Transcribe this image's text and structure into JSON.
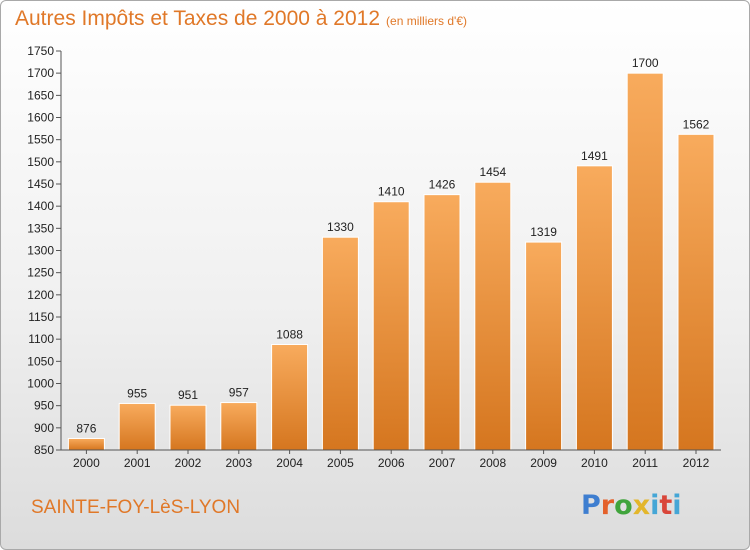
{
  "header": {
    "title": "Autres Impôts et Taxes de 2000 à 2012",
    "unit": "(en milliers d'€)"
  },
  "footer": {
    "city": "SAINTE-FOY-LèS-LYON",
    "logo": [
      "P",
      "r",
      "o",
      "x",
      "i",
      "t",
      "i"
    ]
  },
  "colors": {
    "accent": "#e07828",
    "bar_light": "#f7a85a",
    "bar_dark": "#d5761f"
  },
  "chart_data": {
    "type": "bar",
    "title": "Autres Impôts et Taxes de 2000 à 2012",
    "subtitle": "(en milliers d'€)",
    "xlabel": "",
    "ylabel": "",
    "categories": [
      "2000",
      "2001",
      "2002",
      "2003",
      "2004",
      "2005",
      "2006",
      "2007",
      "2008",
      "2009",
      "2010",
      "2011",
      "2012"
    ],
    "values": [
      876,
      955,
      951,
      957,
      1088,
      1330,
      1410,
      1426,
      1454,
      1319,
      1491,
      1700,
      1562
    ],
    "ylim": [
      850,
      1750
    ],
    "yticks": [
      850,
      900,
      950,
      1000,
      1050,
      1100,
      1150,
      1200,
      1250,
      1300,
      1350,
      1400,
      1450,
      1500,
      1550,
      1600,
      1650,
      1700,
      1750
    ],
    "grid": false,
    "legend": "none",
    "data_labels": true
  }
}
